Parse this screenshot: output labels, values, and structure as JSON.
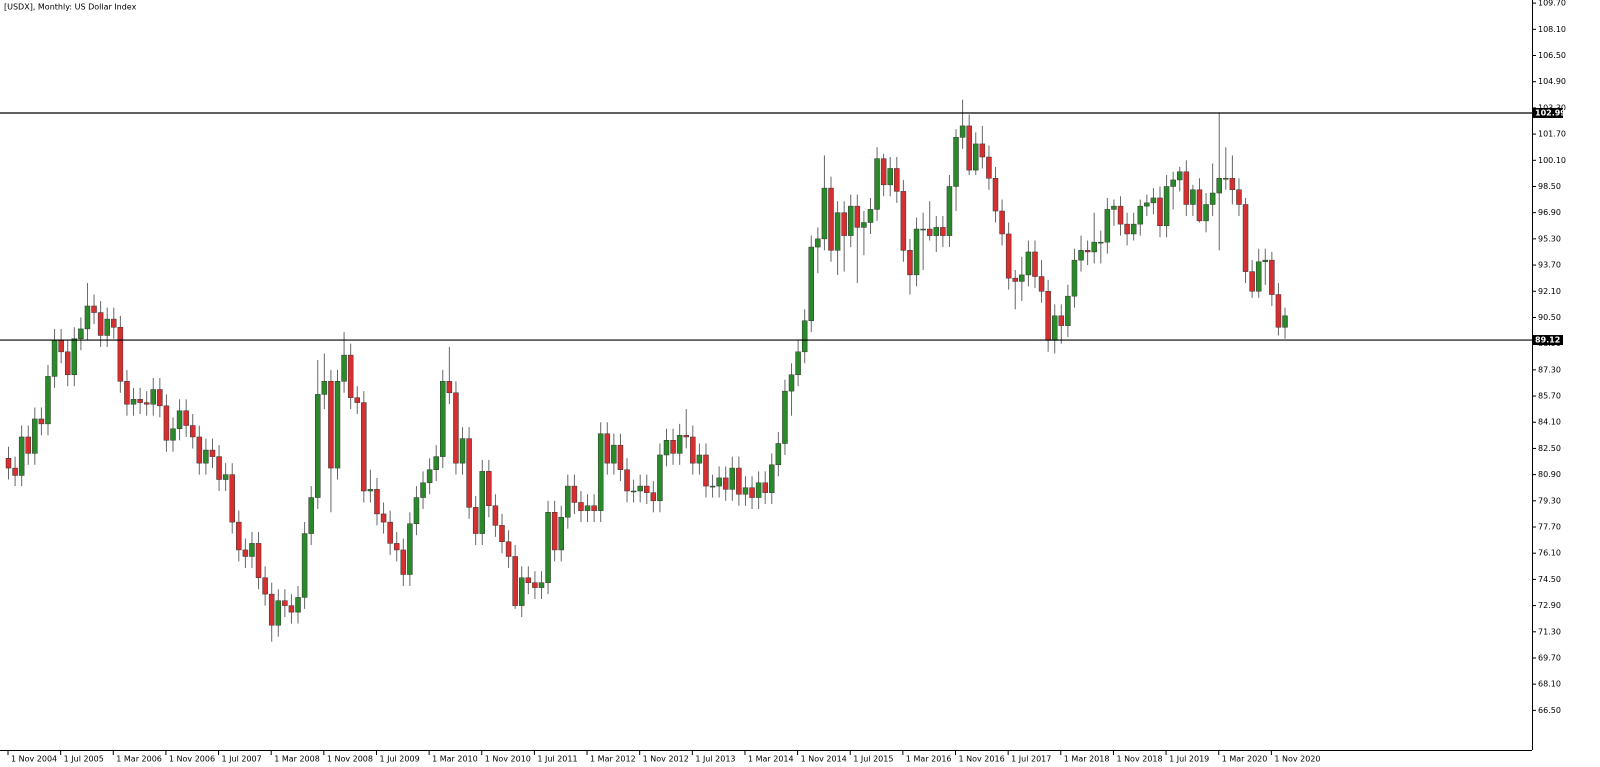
{
  "chart_data": {
    "type": "candlestick",
    "title": "[USDX], Monthly:  US Dollar Index",
    "up_color": "#2a8a2a",
    "down_color": "#d62f2f",
    "wick_color": "#666666",
    "level_color": "#000000",
    "ylim": [
      64.08,
      109.89
    ],
    "yticks": [
      {
        "value": 109.7,
        "label": "109.70"
      },
      {
        "value": 108.1,
        "label": "108.10"
      },
      {
        "value": 106.5,
        "label": "106.50"
      },
      {
        "value": 104.9,
        "label": "104.90"
      },
      {
        "value": 103.3,
        "label": "103.30"
      },
      {
        "value": 101.7,
        "label": "101.70"
      },
      {
        "value": 100.1,
        "label": "100.10"
      },
      {
        "value": 98.5,
        "label": "98.50"
      },
      {
        "value": 96.9,
        "label": "96.90"
      },
      {
        "value": 95.3,
        "label": "95.30"
      },
      {
        "value": 93.7,
        "label": "93.70"
      },
      {
        "value": 92.1,
        "label": "92.10"
      },
      {
        "value": 90.5,
        "label": "90.50"
      },
      {
        "value": 88.9,
        "label": "88.90"
      },
      {
        "value": 87.3,
        "label": "87.30"
      },
      {
        "value": 85.7,
        "label": "85.70"
      },
      {
        "value": 84.1,
        "label": "84.10"
      },
      {
        "value": 82.5,
        "label": "82.50"
      },
      {
        "value": 80.9,
        "label": "80.90"
      },
      {
        "value": 79.3,
        "label": "79.30"
      },
      {
        "value": 77.7,
        "label": "77.70"
      },
      {
        "value": 76.1,
        "label": "76.10"
      },
      {
        "value": 74.5,
        "label": "74.50"
      },
      {
        "value": 72.9,
        "label": "72.90"
      },
      {
        "value": 71.3,
        "label": "71.30"
      },
      {
        "value": 69.7,
        "label": "69.70"
      },
      {
        "value": 68.1,
        "label": "68.10"
      },
      {
        "value": 66.5,
        "label": "66.50"
      }
    ],
    "xticks": [
      {
        "value": 0,
        "label": "1 Nov 2004"
      },
      {
        "value": 8,
        "label": "1 Jul 2005"
      },
      {
        "value": 16,
        "label": "1 Mar 2006"
      },
      {
        "value": 24,
        "label": "1 Nov 2006"
      },
      {
        "value": 32,
        "label": "1 Jul 2007"
      },
      {
        "value": 40,
        "label": "1 Mar 2008"
      },
      {
        "value": 48,
        "label": "1 Nov 2008"
      },
      {
        "value": 56,
        "label": "1 Jul 2009"
      },
      {
        "value": 64,
        "label": "1 Mar 2010"
      },
      {
        "value": 72,
        "label": "1 Nov 2010"
      },
      {
        "value": 80,
        "label": "1 Jul 2011"
      },
      {
        "value": 88,
        "label": "1 Mar 2012"
      },
      {
        "value": 96,
        "label": "1 Nov 2012"
      },
      {
        "value": 104,
        "label": "1 Jul 2013"
      },
      {
        "value": 112,
        "label": "1 Mar 2014"
      },
      {
        "value": 120,
        "label": "1 Nov 2014"
      },
      {
        "value": 128,
        "label": "1 Jul 2015"
      },
      {
        "value": 136,
        "label": "1 Mar 2016"
      },
      {
        "value": 144,
        "label": "1 Nov 2016"
      },
      {
        "value": 152,
        "label": "1 Jul 2017"
      },
      {
        "value": 160,
        "label": "1 Mar 2018"
      },
      {
        "value": 168,
        "label": "1 Nov 2018"
      },
      {
        "value": 176,
        "label": "1 Jul 2019"
      },
      {
        "value": 184,
        "label": "1 Mar 2020"
      },
      {
        "value": 192,
        "label": "1 Nov 2020"
      }
    ],
    "levels": [
      102.99,
      89.12
    ],
    "ohlc": [
      [
        81.9,
        82.6,
        80.6,
        81.3
      ],
      [
        81.3,
        82.0,
        80.2,
        80.85
      ],
      [
        80.85,
        83.9,
        80.2,
        83.2
      ],
      [
        83.2,
        83.9,
        81.5,
        82.2
      ],
      [
        82.2,
        85.0,
        81.5,
        84.3
      ],
      [
        84.3,
        85.0,
        83.3,
        84.0
      ],
      [
        84.0,
        87.6,
        83.3,
        86.9
      ],
      [
        86.9,
        89.8,
        86.2,
        89.1
      ],
      [
        89.1,
        89.8,
        87.7,
        88.4
      ],
      [
        88.4,
        89.1,
        86.3,
        87.0
      ],
      [
        87.0,
        89.9,
        86.3,
        89.2
      ],
      [
        89.2,
        90.5,
        88.5,
        89.8
      ],
      [
        89.8,
        92.6,
        89.1,
        91.2
      ],
      [
        91.2,
        91.9,
        90.1,
        90.8
      ],
      [
        90.8,
        91.5,
        88.7,
        89.4
      ],
      [
        89.4,
        91.1,
        88.7,
        90.4
      ],
      [
        90.4,
        91.1,
        89.2,
        89.9
      ],
      [
        89.9,
        90.6,
        85.9,
        86.6
      ],
      [
        86.6,
        87.3,
        84.5,
        85.2
      ],
      [
        85.2,
        86.2,
        84.5,
        85.5
      ],
      [
        85.5,
        86.2,
        84.6,
        85.3
      ],
      [
        85.3,
        86.0,
        84.5,
        85.2
      ],
      [
        85.2,
        86.8,
        84.5,
        86.1
      ],
      [
        86.1,
        86.8,
        84.4,
        85.1
      ],
      [
        85.1,
        85.8,
        82.3,
        83.0
      ],
      [
        83.0,
        84.4,
        82.3,
        83.7
      ],
      [
        83.7,
        85.5,
        83.0,
        84.8
      ],
      [
        84.8,
        85.5,
        83.2,
        83.9
      ],
      [
        83.9,
        84.6,
        82.5,
        83.2
      ],
      [
        83.2,
        83.9,
        80.9,
        81.6
      ],
      [
        81.6,
        83.1,
        80.9,
        82.4
      ],
      [
        82.4,
        83.1,
        81.3,
        82.0
      ],
      [
        82.0,
        82.7,
        79.9,
        80.6
      ],
      [
        80.6,
        81.6,
        79.9,
        80.9
      ],
      [
        80.9,
        81.6,
        77.3,
        78.0
      ],
      [
        78.0,
        78.7,
        75.6,
        76.3
      ],
      [
        76.3,
        77.0,
        75.2,
        75.9
      ],
      [
        75.9,
        77.4,
        75.2,
        76.7
      ],
      [
        76.7,
        77.4,
        73.9,
        74.6
      ],
      [
        74.6,
        75.3,
        72.9,
        73.6
      ],
      [
        73.6,
        74.3,
        70.7,
        71.7
      ],
      [
        71.7,
        73.9,
        71.0,
        73.2
      ],
      [
        73.2,
        73.9,
        72.2,
        72.9
      ],
      [
        72.9,
        73.6,
        71.8,
        72.5
      ],
      [
        72.5,
        74.1,
        71.8,
        73.4
      ],
      [
        73.4,
        78.0,
        72.7,
        77.3
      ],
      [
        77.3,
        80.2,
        76.6,
        79.5
      ],
      [
        79.5,
        87.9,
        78.8,
        85.8
      ],
      [
        85.8,
        88.3,
        84.9,
        86.6
      ],
      [
        86.6,
        87.3,
        78.6,
        81.3
      ],
      [
        81.3,
        87.3,
        80.6,
        86.6
      ],
      [
        86.6,
        89.6,
        85.9,
        88.2
      ],
      [
        88.2,
        88.9,
        84.9,
        85.6
      ],
      [
        85.6,
        86.3,
        84.6,
        85.3
      ],
      [
        85.3,
        86.0,
        79.2,
        79.9
      ],
      [
        79.9,
        81.2,
        79.2,
        80.0
      ],
      [
        80.0,
        80.7,
        77.8,
        78.5
      ],
      [
        78.5,
        79.2,
        77.3,
        78.0
      ],
      [
        78.0,
        78.7,
        76.0,
        76.7
      ],
      [
        76.7,
        77.4,
        75.6,
        76.3
      ],
      [
        76.3,
        77.0,
        74.1,
        74.8
      ],
      [
        74.8,
        78.6,
        74.1,
        77.9
      ],
      [
        77.9,
        80.2,
        77.2,
        79.5
      ],
      [
        79.5,
        81.1,
        78.8,
        80.4
      ],
      [
        80.4,
        81.9,
        79.7,
        81.2
      ],
      [
        81.2,
        82.7,
        80.5,
        82.0
      ],
      [
        82.0,
        87.3,
        81.3,
        86.6
      ],
      [
        86.6,
        88.7,
        85.2,
        85.9
      ],
      [
        85.9,
        86.6,
        80.9,
        81.6
      ],
      [
        81.6,
        83.8,
        80.9,
        83.1
      ],
      [
        83.1,
        83.8,
        78.2,
        78.9
      ],
      [
        78.9,
        79.6,
        76.6,
        77.3
      ],
      [
        77.3,
        81.8,
        76.6,
        81.1
      ],
      [
        81.1,
        81.8,
        78.3,
        79.0
      ],
      [
        79.0,
        79.7,
        77.1,
        77.8
      ],
      [
        77.8,
        78.5,
        76.1,
        76.8
      ],
      [
        76.8,
        77.5,
        75.2,
        75.9
      ],
      [
        75.9,
        76.6,
        72.7,
        72.9
      ],
      [
        72.9,
        75.3,
        72.2,
        74.6
      ],
      [
        74.6,
        75.3,
        73.6,
        74.3
      ],
      [
        74.3,
        75.0,
        73.3,
        74.0
      ],
      [
        74.0,
        75.0,
        73.3,
        74.3
      ],
      [
        74.3,
        79.3,
        73.6,
        78.6
      ],
      [
        78.6,
        79.3,
        75.6,
        76.3
      ],
      [
        76.3,
        79.0,
        75.6,
        78.3
      ],
      [
        78.3,
        80.9,
        77.6,
        80.2
      ],
      [
        80.2,
        80.9,
        78.5,
        79.2
      ],
      [
        79.2,
        79.9,
        78.0,
        78.7
      ],
      [
        78.7,
        79.7,
        78.0,
        79.0
      ],
      [
        79.0,
        79.7,
        78.0,
        78.7
      ],
      [
        78.7,
        84.1,
        78.0,
        83.4
      ],
      [
        83.4,
        84.1,
        80.9,
        81.6
      ],
      [
        81.6,
        83.4,
        80.9,
        82.7
      ],
      [
        82.7,
        83.4,
        80.5,
        81.2
      ],
      [
        81.2,
        81.9,
        79.2,
        79.9
      ],
      [
        79.9,
        80.6,
        79.2,
        79.9
      ],
      [
        79.9,
        80.9,
        79.2,
        80.2
      ],
      [
        80.2,
        80.9,
        79.1,
        79.8
      ],
      [
        79.8,
        80.5,
        78.6,
        79.3
      ],
      [
        79.3,
        82.8,
        78.6,
        82.1
      ],
      [
        82.1,
        83.7,
        81.4,
        83.0
      ],
      [
        83.0,
        83.7,
        81.5,
        82.2
      ],
      [
        82.2,
        84.0,
        81.5,
        83.3
      ],
      [
        83.3,
        84.9,
        82.5,
        83.2
      ],
      [
        83.2,
        83.9,
        80.9,
        81.6
      ],
      [
        81.6,
        82.8,
        80.9,
        82.1
      ],
      [
        82.1,
        82.8,
        79.5,
        80.2
      ],
      [
        80.2,
        80.9,
        79.5,
        80.2
      ],
      [
        80.2,
        81.4,
        79.5,
        80.7
      ],
      [
        80.7,
        81.4,
        79.3,
        80.0
      ],
      [
        80.0,
        82.0,
        79.3,
        81.3
      ],
      [
        81.3,
        82.0,
        79.0,
        79.7
      ],
      [
        79.7,
        80.8,
        79.0,
        80.1
      ],
      [
        80.1,
        80.8,
        78.8,
        79.5
      ],
      [
        79.5,
        81.1,
        78.8,
        80.4
      ],
      [
        80.4,
        81.1,
        79.1,
        79.8
      ],
      [
        79.8,
        82.2,
        79.1,
        81.5
      ],
      [
        81.5,
        83.5,
        80.8,
        82.8
      ],
      [
        82.8,
        86.7,
        82.1,
        86.0
      ],
      [
        86.0,
        87.7,
        84.5,
        87.0
      ],
      [
        87.0,
        89.1,
        86.3,
        88.4
      ],
      [
        88.4,
        91.0,
        87.7,
        90.3
      ],
      [
        90.3,
        95.5,
        89.6,
        94.8
      ],
      [
        94.8,
        96.0,
        93.2,
        95.3
      ],
      [
        95.3,
        100.4,
        94.6,
        98.4
      ],
      [
        98.4,
        99.1,
        93.9,
        94.6
      ],
      [
        94.6,
        97.6,
        93.1,
        96.9
      ],
      [
        96.9,
        97.6,
        93.3,
        95.5
      ],
      [
        95.5,
        98.0,
        94.8,
        97.3
      ],
      [
        97.3,
        98.0,
        92.6,
        96.0
      ],
      [
        96.0,
        97.0,
        94.3,
        96.3
      ],
      [
        96.3,
        97.8,
        95.6,
        97.1
      ],
      [
        97.1,
        100.9,
        96.4,
        100.2
      ],
      [
        100.2,
        100.5,
        97.9,
        98.6
      ],
      [
        98.6,
        100.3,
        97.9,
        99.6
      ],
      [
        99.6,
        100.3,
        97.5,
        98.2
      ],
      [
        98.2,
        98.9,
        93.9,
        94.6
      ],
      [
        94.6,
        95.3,
        91.9,
        93.1
      ],
      [
        93.1,
        96.6,
        92.4,
        95.9
      ],
      [
        95.9,
        96.9,
        93.4,
        95.9
      ],
      [
        95.9,
        97.6,
        95.2,
        95.5
      ],
      [
        95.5,
        96.7,
        94.5,
        96.0
      ],
      [
        96.0,
        96.7,
        94.8,
        95.5
      ],
      [
        95.5,
        99.2,
        94.8,
        98.5
      ],
      [
        98.5,
        102.0,
        97.0,
        101.5
      ],
      [
        101.5,
        103.8,
        100.8,
        102.2
      ],
      [
        102.2,
        102.9,
        99.2,
        99.5
      ],
      [
        99.5,
        101.8,
        99.2,
        101.1
      ],
      [
        101.1,
        102.2,
        99.6,
        100.3
      ],
      [
        100.3,
        101.0,
        98.3,
        99.0
      ],
      [
        99.0,
        99.7,
        96.3,
        97.0
      ],
      [
        97.0,
        97.7,
        94.9,
        95.6
      ],
      [
        95.6,
        96.3,
        92.2,
        92.9
      ],
      [
        92.9,
        93.4,
        91.0,
        92.7
      ],
      [
        92.7,
        94.2,
        91.5,
        93.1
      ],
      [
        93.1,
        95.2,
        92.4,
        94.5
      ],
      [
        94.5,
        95.2,
        92.3,
        93.0
      ],
      [
        93.0,
        94.0,
        91.4,
        92.1
      ],
      [
        92.1,
        92.8,
        88.4,
        89.1
      ],
      [
        89.1,
        91.3,
        88.3,
        90.6
      ],
      [
        90.6,
        91.3,
        88.9,
        90.0
      ],
      [
        90.0,
        92.5,
        89.3,
        91.8
      ],
      [
        91.8,
        94.7,
        91.1,
        94.0
      ],
      [
        94.0,
        95.5,
        93.3,
        94.6
      ],
      [
        94.6,
        95.2,
        93.7,
        94.5
      ],
      [
        94.5,
        96.9,
        93.8,
        95.1
      ],
      [
        95.1,
        95.8,
        93.8,
        95.1
      ],
      [
        95.1,
        97.8,
        94.4,
        97.1
      ],
      [
        97.1,
        97.7,
        96.1,
        97.3
      ],
      [
        97.3,
        97.9,
        95.5,
        96.2
      ],
      [
        96.2,
        96.9,
        94.9,
        95.6
      ],
      [
        95.6,
        96.9,
        95.2,
        96.2
      ],
      [
        96.2,
        97.7,
        95.5,
        97.3
      ],
      [
        97.3,
        98.0,
        96.7,
        97.5
      ],
      [
        97.5,
        98.4,
        96.8,
        97.8
      ],
      [
        97.8,
        98.5,
        95.4,
        96.1
      ],
      [
        96.1,
        99.2,
        95.4,
        98.5
      ],
      [
        98.5,
        99.4,
        97.1,
        98.9
      ],
      [
        98.9,
        99.7,
        98.2,
        99.4
      ],
      [
        99.4,
        100.1,
        96.7,
        97.4
      ],
      [
        97.4,
        98.6,
        96.7,
        98.3
      ],
      [
        98.3,
        99.0,
        96.3,
        96.4
      ],
      [
        96.4,
        98.1,
        95.7,
        97.4
      ],
      [
        97.4,
        99.9,
        96.7,
        98.1
      ],
      [
        98.1,
        103.0,
        94.6,
        99.0
      ],
      [
        99.0,
        100.9,
        98.3,
        99.0
      ],
      [
        99.0,
        100.4,
        97.4,
        98.3
      ],
      [
        98.3,
        99.0,
        96.7,
        97.4
      ],
      [
        97.4,
        97.8,
        92.6,
        93.3
      ],
      [
        93.3,
        94.0,
        91.7,
        92.1
      ],
      [
        92.1,
        94.7,
        91.7,
        93.9
      ],
      [
        93.9,
        94.7,
        92.5,
        94.0
      ],
      [
        94.0,
        94.5,
        91.2,
        91.9
      ],
      [
        91.9,
        92.6,
        89.4,
        89.9
      ],
      [
        89.9,
        91.1,
        89.2,
        90.6
      ]
    ]
  }
}
